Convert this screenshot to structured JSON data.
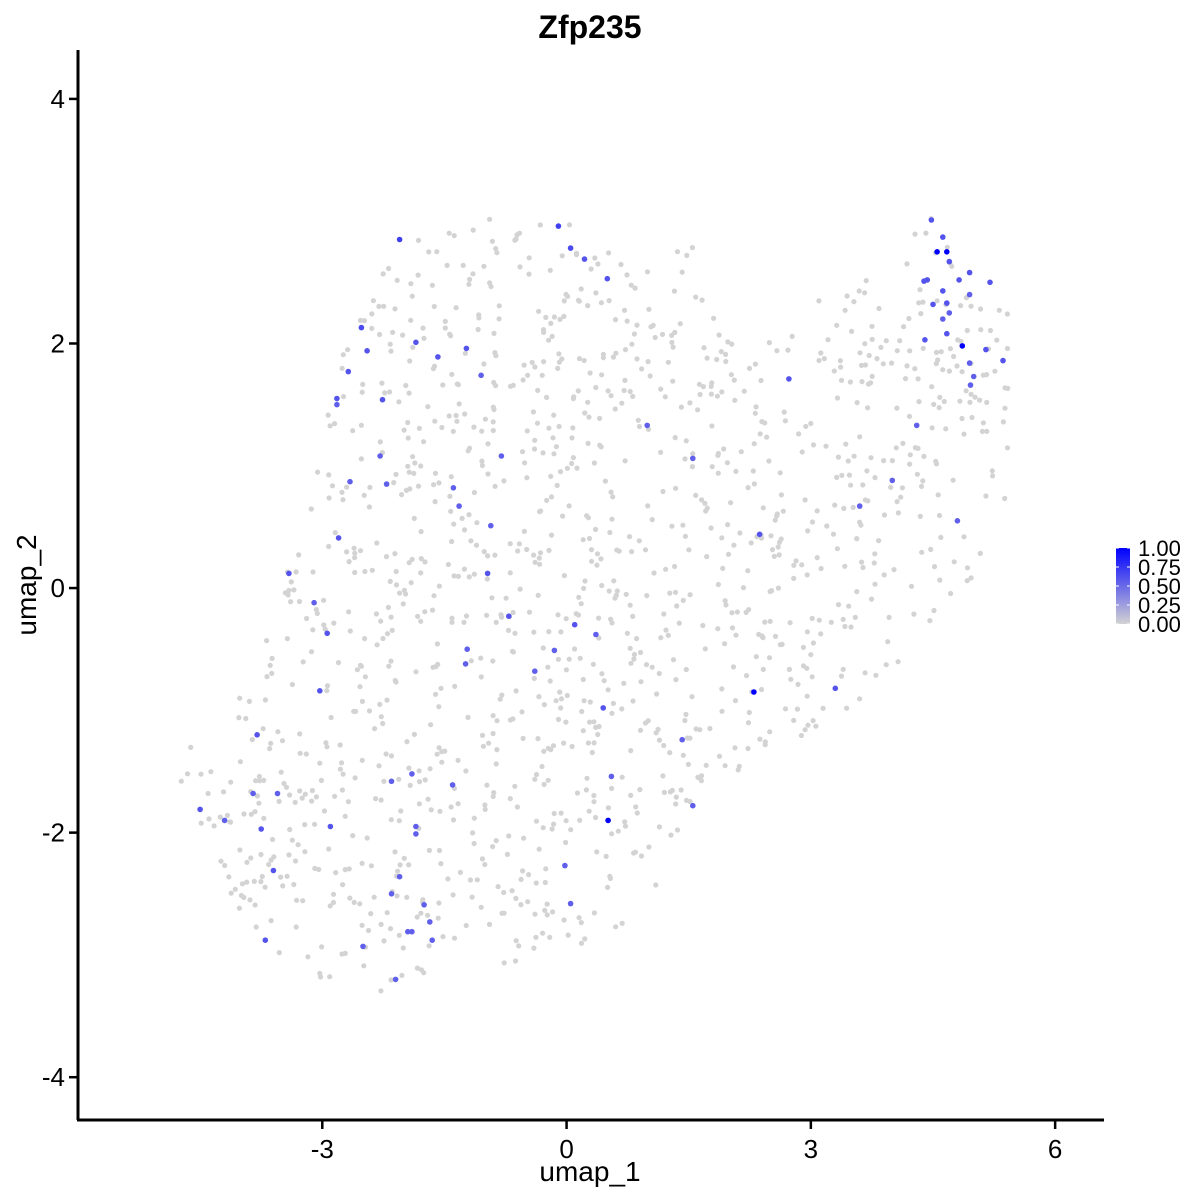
{
  "chart_data": {
    "type": "scatter",
    "title": "Zfp235",
    "xlabel": "umap_1",
    "ylabel": "umap_2",
    "xlim": [
      -6.0,
      6.6
    ],
    "ylim": [
      -4.35,
      4.4
    ],
    "x_ticks": [
      -3,
      0,
      3,
      6
    ],
    "x_tick_labels": [
      "-3",
      "0",
      "3",
      "6"
    ],
    "y_ticks": [
      4,
      2,
      0,
      -2,
      -4
    ],
    "y_tick_labels": [
      "4",
      "2",
      "0",
      "-2",
      "-4"
    ],
    "grid": false,
    "colors": {
      "low": "#d3d3d3",
      "high": "#0000ff"
    },
    "legend": {
      "position": "right",
      "labels": [
        "1.00",
        "0.75",
        "0.50",
        "0.25",
        "0.00"
      ],
      "values": [
        1.0,
        0.75,
        0.5,
        0.25,
        0.0
      ]
    },
    "point_size": 5,
    "background_region": [
      [
        -4.8,
        -1.2
      ],
      [
        -4.2,
        -1.1
      ],
      [
        -3.6,
        -0.3
      ],
      [
        -3.4,
        0.3
      ],
      [
        -3.1,
        0.9
      ],
      [
        -2.9,
        1.5
      ],
      [
        -2.8,
        2.0
      ],
      [
        -2.5,
        2.3
      ],
      [
        -2.1,
        2.8
      ],
      [
        -1.5,
        2.95
      ],
      [
        -0.9,
        3.05
      ],
      [
        -0.3,
        3.05
      ],
      [
        0.3,
        2.95
      ],
      [
        1.0,
        2.75
      ],
      [
        1.6,
        2.8
      ],
      [
        1.7,
        2.3
      ],
      [
        2.2,
        1.9
      ],
      [
        2.9,
        2.3
      ],
      [
        3.4,
        2.5
      ],
      [
        4.0,
        2.7
      ],
      [
        4.5,
        3.05
      ],
      [
        5.0,
        2.6
      ],
      [
        5.45,
        2.3
      ],
      [
        5.4,
        0.5
      ],
      [
        5.2,
        0.2
      ],
      [
        4.8,
        -0.2
      ],
      [
        4.0,
        -0.7
      ],
      [
        3.5,
        -1.0
      ],
      [
        2.9,
        -1.2
      ],
      [
        2.2,
        -1.5
      ],
      [
        1.8,
        -1.5
      ],
      [
        1.5,
        -1.8
      ],
      [
        1.0,
        -2.6
      ],
      [
        0.6,
        -2.9
      ],
      [
        0.0,
        -3.0
      ],
      [
        -0.9,
        -3.1
      ],
      [
        -1.4,
        -3.2
      ],
      [
        -2.0,
        -3.3
      ],
      [
        -2.5,
        -3.5
      ],
      [
        -3.0,
        -3.2
      ],
      [
        -3.5,
        -3.0
      ],
      [
        -3.9,
        -2.9
      ],
      [
        -4.3,
        -2.2
      ],
      [
        -4.6,
        -1.8
      ],
      [
        -4.9,
        -1.4
      ]
    ],
    "background_seed": 20240,
    "background_count": 1350,
    "expressed_points": [
      {
        "x": -2.05,
        "y": 2.85,
        "v": 0.7
      },
      {
        "x": -0.1,
        "y": 2.96,
        "v": 0.7
      },
      {
        "x": 0.05,
        "y": 2.78,
        "v": 0.65
      },
      {
        "x": 0.22,
        "y": 2.69,
        "v": 0.6
      },
      {
        "x": 0.5,
        "y": 2.53,
        "v": 0.6
      },
      {
        "x": -2.52,
        "y": 2.13,
        "v": 0.65
      },
      {
        "x": -2.45,
        "y": 1.94,
        "v": 0.6
      },
      {
        "x": -1.85,
        "y": 2.01,
        "v": 0.6
      },
      {
        "x": -1.23,
        "y": 1.96,
        "v": 0.6
      },
      {
        "x": -1.58,
        "y": 1.89,
        "v": 0.6
      },
      {
        "x": -1.05,
        "y": 1.74,
        "v": 0.55
      },
      {
        "x": -2.68,
        "y": 1.77,
        "v": 0.6
      },
      {
        "x": -2.82,
        "y": 1.55,
        "v": 0.6
      },
      {
        "x": -2.82,
        "y": 1.5,
        "v": 0.55
      },
      {
        "x": -2.26,
        "y": 1.54,
        "v": 0.6
      },
      {
        "x": 0.99,
        "y": 1.33,
        "v": 0.55
      },
      {
        "x": -0.8,
        "y": 1.08,
        "v": 0.55
      },
      {
        "x": 1.55,
        "y": 1.06,
        "v": 0.55
      },
      {
        "x": -2.29,
        "y": 1.08,
        "v": 0.55
      },
      {
        "x": -2.66,
        "y": 0.87,
        "v": 0.55
      },
      {
        "x": -2.21,
        "y": 0.85,
        "v": 0.55
      },
      {
        "x": -1.39,
        "y": 0.82,
        "v": 0.55
      },
      {
        "x": -1.32,
        "y": 0.67,
        "v": 0.55
      },
      {
        "x": -0.93,
        "y": 0.51,
        "v": 0.55
      },
      {
        "x": -2.8,
        "y": 0.41,
        "v": 0.6
      },
      {
        "x": 2.37,
        "y": 0.44,
        "v": 0.6
      },
      {
        "x": -3.41,
        "y": 0.12,
        "v": 0.6
      },
      {
        "x": -0.97,
        "y": 0.12,
        "v": 0.6
      },
      {
        "x": -3.1,
        "y": -0.12,
        "v": 0.55
      },
      {
        "x": -2.94,
        "y": -0.37,
        "v": 0.6
      },
      {
        "x": -0.71,
        "y": -0.23,
        "v": 0.6
      },
      {
        "x": 0.1,
        "y": -0.3,
        "v": 0.6
      },
      {
        "x": 0.36,
        "y": -0.38,
        "v": 0.55
      },
      {
        "x": -1.22,
        "y": -0.5,
        "v": 0.55
      },
      {
        "x": -1.24,
        "y": -0.62,
        "v": 0.55
      },
      {
        "x": -0.15,
        "y": -0.51,
        "v": 0.55
      },
      {
        "x": -0.39,
        "y": -0.68,
        "v": 0.55
      },
      {
        "x": -3.03,
        "y": -0.84,
        "v": 0.6
      },
      {
        "x": 2.3,
        "y": -0.85,
        "v": 1.0
      },
      {
        "x": 3.3,
        "y": -0.82,
        "v": 0.6
      },
      {
        "x": 0.45,
        "y": -0.98,
        "v": 0.6
      },
      {
        "x": 1.42,
        "y": -1.24,
        "v": 0.55
      },
      {
        "x": -3.8,
        "y": -1.2,
        "v": 0.6
      },
      {
        "x": -1.9,
        "y": -1.52,
        "v": 0.55
      },
      {
        "x": -2.15,
        "y": -1.58,
        "v": 0.55
      },
      {
        "x": -1.4,
        "y": -1.61,
        "v": 0.55
      },
      {
        "x": 0.55,
        "y": -1.54,
        "v": 0.55
      },
      {
        "x": -4.5,
        "y": -1.81,
        "v": 0.6
      },
      {
        "x": -3.85,
        "y": -1.68,
        "v": 0.55
      },
      {
        "x": -3.55,
        "y": -1.68,
        "v": 0.55
      },
      {
        "x": 1.55,
        "y": -1.78,
        "v": 0.55
      },
      {
        "x": -4.2,
        "y": -1.9,
        "v": 0.55
      },
      {
        "x": 0.51,
        "y": -1.9,
        "v": 1.0
      },
      {
        "x": -3.75,
        "y": -1.97,
        "v": 0.6
      },
      {
        "x": -2.9,
        "y": -1.95,
        "v": 0.6
      },
      {
        "x": -1.85,
        "y": -1.95,
        "v": 0.55
      },
      {
        "x": -1.85,
        "y": -2.01,
        "v": 0.55
      },
      {
        "x": -0.02,
        "y": -2.27,
        "v": 0.55
      },
      {
        "x": -3.6,
        "y": -2.31,
        "v": 0.6
      },
      {
        "x": -2.05,
        "y": -2.36,
        "v": 0.55
      },
      {
        "x": -2.15,
        "y": -2.5,
        "v": 0.55
      },
      {
        "x": -1.75,
        "y": -2.59,
        "v": 0.55
      },
      {
        "x": 0.05,
        "y": -2.58,
        "v": 0.55
      },
      {
        "x": -1.68,
        "y": -2.73,
        "v": 0.55
      },
      {
        "x": -1.95,
        "y": -2.81,
        "v": 0.55
      },
      {
        "x": -1.9,
        "y": -2.81,
        "v": 0.55
      },
      {
        "x": -1.65,
        "y": -2.88,
        "v": 0.55
      },
      {
        "x": -3.7,
        "y": -2.88,
        "v": 0.6
      },
      {
        "x": -2.5,
        "y": -2.93,
        "v": 0.55
      },
      {
        "x": -2.1,
        "y": -3.2,
        "v": 0.55
      },
      {
        "x": 4.48,
        "y": 3.01,
        "v": 0.6
      },
      {
        "x": 4.55,
        "y": 2.75,
        "v": 1.0
      },
      {
        "x": 4.62,
        "y": 2.87,
        "v": 0.6
      },
      {
        "x": 4.67,
        "y": 2.75,
        "v": 1.0
      },
      {
        "x": 4.7,
        "y": 2.67,
        "v": 0.6
      },
      {
        "x": 4.43,
        "y": 2.52,
        "v": 0.6
      },
      {
        "x": 4.39,
        "y": 2.51,
        "v": 0.6
      },
      {
        "x": 4.82,
        "y": 2.52,
        "v": 0.6
      },
      {
        "x": 4.95,
        "y": 2.58,
        "v": 0.6
      },
      {
        "x": 5.2,
        "y": 2.5,
        "v": 0.6
      },
      {
        "x": 4.62,
        "y": 2.43,
        "v": 0.6
      },
      {
        "x": 4.67,
        "y": 2.33,
        "v": 0.6
      },
      {
        "x": 4.95,
        "y": 2.4,
        "v": 0.55
      },
      {
        "x": 4.5,
        "y": 2.32,
        "v": 0.6
      },
      {
        "x": 4.7,
        "y": 2.25,
        "v": 0.55
      },
      {
        "x": 4.62,
        "y": 2.2,
        "v": 0.55
      },
      {
        "x": 4.4,
        "y": 2.03,
        "v": 0.6
      },
      {
        "x": 4.67,
        "y": 2.08,
        "v": 0.6
      },
      {
        "x": 4.86,
        "y": 1.98,
        "v": 1.0
      },
      {
        "x": 5.15,
        "y": 1.95,
        "v": 0.6
      },
      {
        "x": 5.36,
        "y": 1.86,
        "v": 0.6
      },
      {
        "x": 4.95,
        "y": 1.84,
        "v": 0.55
      },
      {
        "x": 5.0,
        "y": 1.73,
        "v": 0.55
      },
      {
        "x": 4.96,
        "y": 1.66,
        "v": 0.55
      },
      {
        "x": 2.73,
        "y": 1.71,
        "v": 0.6
      },
      {
        "x": 4.3,
        "y": 1.33,
        "v": 0.55
      },
      {
        "x": 4.0,
        "y": 0.88,
        "v": 0.55
      },
      {
        "x": 3.6,
        "y": 0.67,
        "v": 0.55
      },
      {
        "x": 4.8,
        "y": 0.55,
        "v": 0.55
      }
    ]
  }
}
